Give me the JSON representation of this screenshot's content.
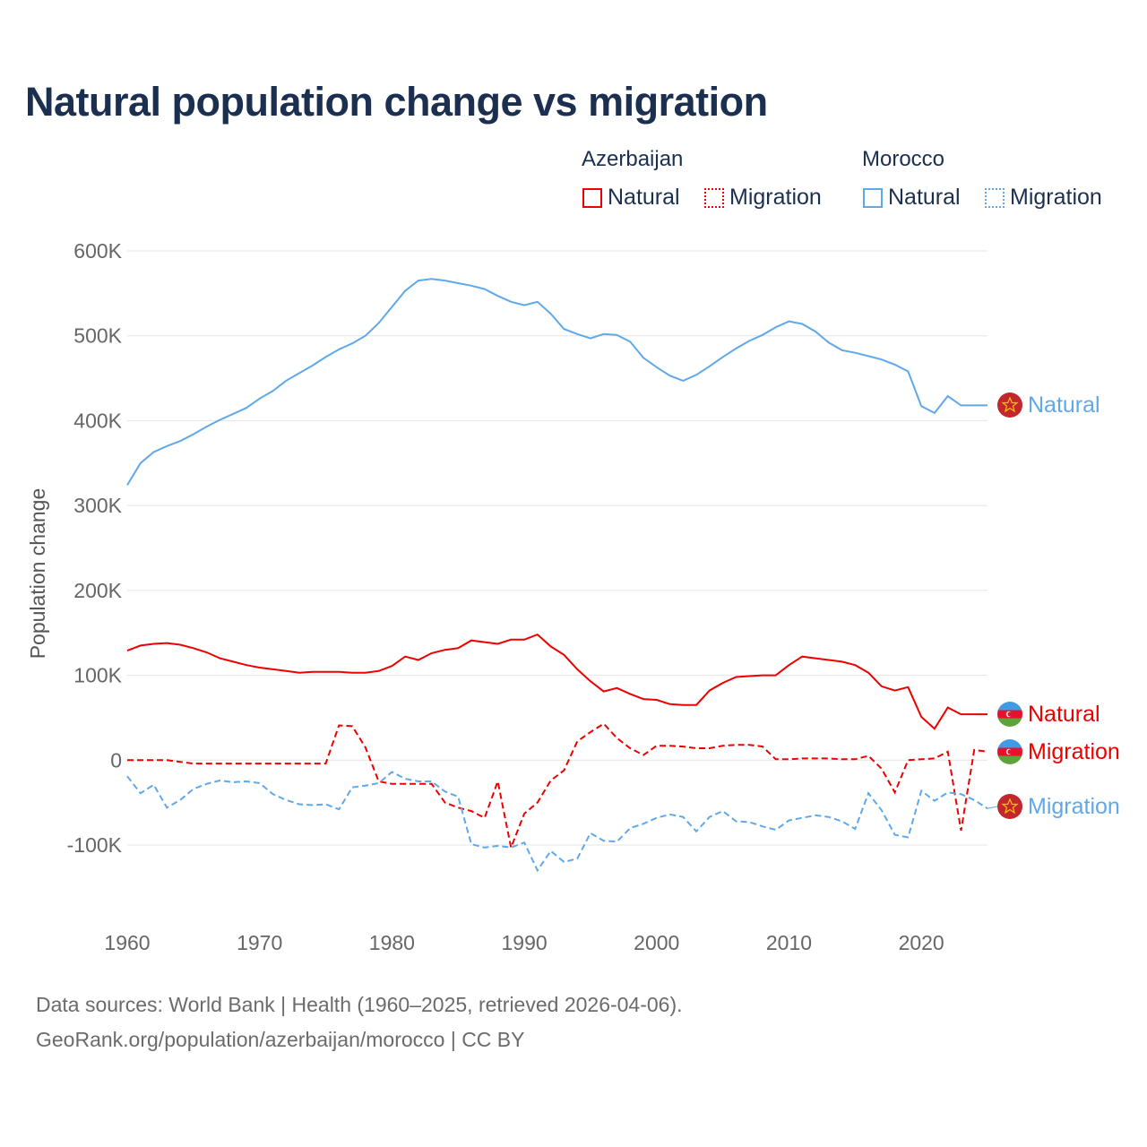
{
  "title": "Natural population change vs migration",
  "legend": {
    "groups": [
      {
        "name": "Azerbaijan",
        "color": "#ee0000",
        "items": [
          "Natural",
          "Migration"
        ]
      },
      {
        "name": "Morocco",
        "color": "#5fa8ea",
        "items": [
          "Natural",
          "Migration"
        ]
      }
    ]
  },
  "footer": {
    "line1": "Data sources: World Bank | Health (1960–2025, retrieved 2026-04-06).",
    "line2": "GeoRank.org/population/azerbaijan/morocco | CC BY"
  },
  "chart_data": {
    "type": "line",
    "title": "Natural population change vs migration",
    "ylabel": "Population change",
    "xlabel": "",
    "xlim": [
      1960,
      2025
    ],
    "ylim": [
      -100000,
      600000
    ],
    "x_ticks": [
      "1960",
      "1970",
      "1980",
      "1990",
      "2000",
      "2010",
      "2020"
    ],
    "y_ticks": [
      {
        "v": 600000,
        "label": "600K"
      },
      {
        "v": 500000,
        "label": "500K"
      },
      {
        "v": 400000,
        "label": "400K"
      },
      {
        "v": 300000,
        "label": "300K"
      },
      {
        "v": 200000,
        "label": "200K"
      },
      {
        "v": 100000,
        "label": "100K"
      },
      {
        "v": 0,
        "label": "0"
      },
      {
        "v": -100000,
        "label": "-100K"
      }
    ],
    "grid": true,
    "x_start": 1960,
    "series": [
      {
        "name": "Morocco Natural",
        "end_label": "Natural",
        "color": "#5fa8ea",
        "dash": false,
        "flag": "morocco",
        "values_k": [
          324,
          350,
          363,
          370,
          376,
          384,
          393,
          401,
          408,
          415,
          426,
          435,
          447,
          456,
          465,
          475,
          484,
          491,
          500,
          515,
          534,
          553,
          565,
          567,
          565,
          562,
          559,
          555,
          547,
          540,
          536,
          540,
          526,
          508,
          502,
          497,
          502,
          501,
          493,
          474,
          463,
          453,
          447,
          454,
          464,
          475,
          485,
          494,
          501,
          510,
          517,
          514,
          505,
          492,
          483,
          480,
          476,
          472,
          466,
          458,
          417,
          409,
          429,
          418,
          418,
          418
        ]
      },
      {
        "name": "Azerbaijan Natural",
        "end_label": "Natural",
        "color": "#ee0000",
        "dash": false,
        "flag": "azerbaijan",
        "values_k": [
          129,
          135,
          137,
          138,
          136,
          132,
          127,
          120,
          116,
          112,
          109,
          107,
          105,
          103,
          104,
          104,
          104,
          103,
          103,
          105,
          111,
          122,
          118,
          126,
          130,
          132,
          141,
          139,
          137,
          142,
          142,
          148,
          134,
          124,
          107,
          93,
          81,
          85,
          78,
          72,
          71,
          66,
          65,
          65,
          82,
          91,
          98,
          99,
          100,
          100,
          112,
          122,
          120,
          118,
          116,
          112,
          103,
          87,
          82,
          86,
          51,
          37,
          62,
          54,
          54,
          54
        ]
      },
      {
        "name": "Azerbaijan Migration",
        "end_label": "Migration",
        "color": "#ee0000",
        "dash": true,
        "flag": "azerbaijan",
        "values_k": [
          0,
          0,
          0,
          0,
          -2,
          -4,
          -4,
          -4,
          -4,
          -4,
          -4,
          -4,
          -4,
          -4,
          -4,
          -4,
          41,
          40,
          15,
          -25,
          -28,
          -28,
          -28,
          -28,
          -50,
          -56,
          -60,
          -68,
          -25,
          -103,
          -63,
          -50,
          -24,
          -12,
          22,
          33,
          43,
          26,
          14,
          6,
          17,
          17,
          16,
          14,
          14,
          17,
          18,
          18,
          16,
          1,
          1,
          2,
          2,
          2,
          1,
          1,
          5,
          -10,
          -38,
          0,
          1,
          2,
          10,
          -83,
          12,
          10
        ]
      },
      {
        "name": "Morocco Migration",
        "end_label": "Migration",
        "color": "#5fa8ea",
        "dash": true,
        "flag": "morocco",
        "values_k": [
          -19,
          -39,
          -29,
          -56,
          -47,
          -34,
          -28,
          -24,
          -26,
          -25,
          -27,
          -40,
          -47,
          -52,
          -53,
          -52,
          -58,
          -32,
          -30,
          -27,
          -14,
          -22,
          -25,
          -25,
          -37,
          -43,
          -99,
          -103,
          -101,
          -103,
          -97,
          -130,
          -107,
          -120,
          -116,
          -86,
          -95,
          -96,
          -80,
          -75,
          -68,
          -64,
          -67,
          -84,
          -67,
          -60,
          -72,
          -73,
          -78,
          -82,
          -71,
          -68,
          -65,
          -67,
          -72,
          -81,
          -39,
          -59,
          -88,
          -91,
          -36,
          -48,
          -38,
          -40,
          -47,
          -57
        ]
      }
    ]
  }
}
